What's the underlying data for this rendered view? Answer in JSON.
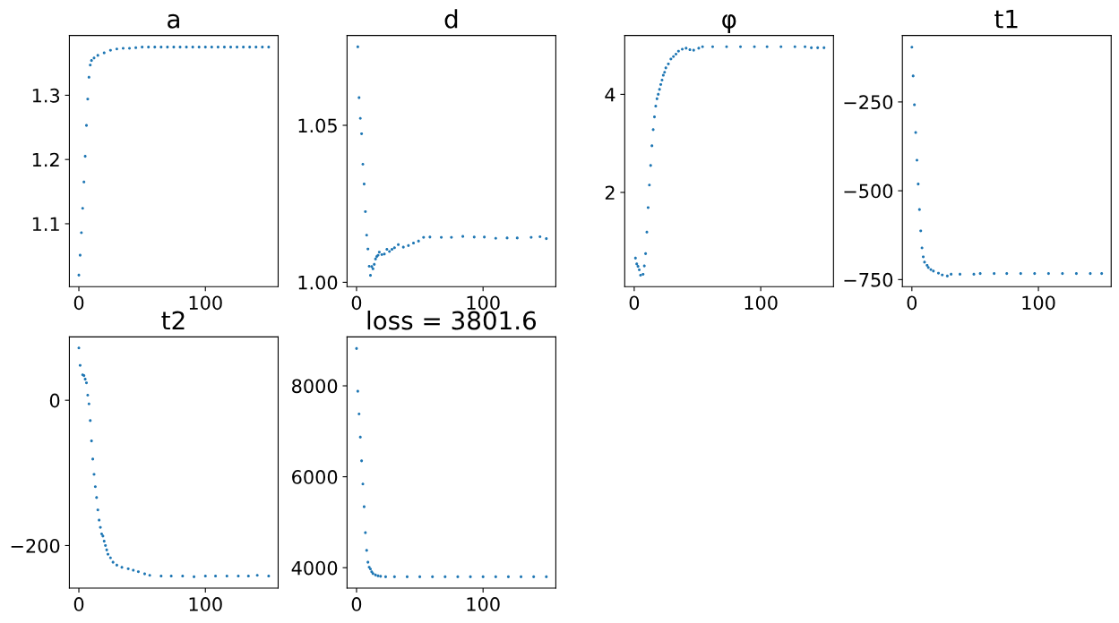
{
  "chart_data": [
    {
      "type": "scatter",
      "title": "a",
      "color": "#1f77b4",
      "marker": "circle",
      "x": [
        0,
        1,
        2,
        3,
        4,
        5,
        6,
        7,
        8,
        9,
        10,
        12,
        15,
        20,
        25,
        30,
        35,
        40,
        45,
        50,
        55,
        60,
        65,
        70,
        75,
        80,
        85,
        90,
        95,
        100,
        105,
        110,
        115,
        120,
        125,
        130,
        135,
        140,
        145,
        150
      ],
      "values": [
        1.02,
        1.051,
        1.086,
        1.124,
        1.165,
        1.205,
        1.253,
        1.294,
        1.328,
        1.347,
        1.354,
        1.358,
        1.362,
        1.366,
        1.37,
        1.372,
        1.373,
        1.373,
        1.374,
        1.375,
        1.375,
        1.375,
        1.375,
        1.375,
        1.375,
        1.375,
        1.375,
        1.375,
        1.375,
        1.375,
        1.375,
        1.375,
        1.375,
        1.375,
        1.375,
        1.375,
        1.375,
        1.375,
        1.375,
        1.375
      ],
      "xlim": [
        -7.5,
        157.5
      ],
      "ylim": [
        1.002,
        1.393
      ],
      "xticks": [
        0,
        100
      ],
      "yticks": [
        1.1,
        1.2,
        1.3
      ]
    },
    {
      "type": "scatter",
      "title": "d",
      "color": "#1f77b4",
      "marker": "circle",
      "x": [
        1,
        2,
        3,
        4,
        5,
        6,
        7,
        8,
        9,
        10,
        11,
        12,
        13,
        14,
        15,
        16,
        17,
        18,
        20,
        22,
        24,
        26,
        28,
        30,
        33,
        37,
        41,
        45,
        49,
        53,
        58,
        67,
        75,
        84,
        93,
        101,
        110,
        119,
        127,
        138,
        145,
        150
      ],
      "values": [
        1.075,
        1.0588,
        1.0522,
        1.0473,
        1.0376,
        1.0313,
        1.0225,
        1.015,
        1.0106,
        1.0051,
        1.0022,
        1.005,
        1.0043,
        1.0057,
        1.0074,
        1.0082,
        1.0086,
        1.0096,
        1.0088,
        1.009,
        1.0105,
        1.0098,
        1.0105,
        1.011,
        1.012,
        1.0112,
        1.0117,
        1.0125,
        1.0131,
        1.0143,
        1.0144,
        1.0143,
        1.0143,
        1.0146,
        1.0144,
        1.0144,
        1.014,
        1.0141,
        1.0141,
        1.0143,
        1.0145,
        1.0139
      ],
      "xlim": [
        -7.5,
        157.5
      ],
      "ylim": [
        0.9986,
        1.0786
      ],
      "xticks": [
        0,
        100
      ],
      "yticks": [
        {
          "value": 1.0,
          "label": "1.00"
        },
        {
          "value": 1.05,
          "label": "1.05"
        }
      ]
    },
    {
      "type": "scatter",
      "title": "φ",
      "color": "#1f77b4",
      "marker": "circle",
      "x": [
        1,
        2,
        3,
        4,
        5,
        7,
        8,
        9,
        10,
        11,
        12,
        13,
        14,
        15,
        16,
        17,
        18,
        19,
        20,
        21,
        22,
        23,
        24,
        25,
        27,
        29,
        31,
        33,
        35,
        38,
        41,
        44,
        47,
        51,
        54,
        62,
        73,
        84,
        95,
        105,
        116,
        127,
        135,
        140,
        145,
        150
      ],
      "values": [
        0.66,
        0.54,
        0.49,
        0.42,
        0.31,
        0.33,
        0.5,
        0.75,
        1.19,
        1.69,
        2.15,
        2.55,
        2.95,
        3.28,
        3.54,
        3.76,
        3.91,
        4.0,
        4.1,
        4.2,
        4.29,
        4.39,
        4.45,
        4.54,
        4.62,
        4.72,
        4.77,
        4.82,
        4.88,
        4.92,
        4.94,
        4.91,
        4.9,
        4.94,
        4.97,
        4.97,
        4.97,
        4.97,
        4.97,
        4.97,
        4.97,
        4.97,
        4.97,
        4.95,
        4.95,
        4.95
      ],
      "xlim": [
        -7.5,
        157.5
      ],
      "ylim": [
        0.077,
        5.2
      ],
      "xticks": [
        0,
        100
      ],
      "yticks": [
        2,
        4
      ]
    },
    {
      "type": "scatter",
      "title": "t1",
      "color": "#1f77b4",
      "marker": "circle",
      "x": [
        0,
        1,
        2,
        3,
        4,
        5,
        6,
        7,
        8,
        9,
        10,
        12,
        13,
        15,
        17,
        21,
        24,
        28,
        31,
        38,
        49,
        54,
        65,
        75,
        86,
        97,
        108,
        119,
        130,
        141,
        150
      ],
      "values": [
        -96,
        -177,
        -258,
        -336,
        -414,
        -481,
        -553,
        -613,
        -661,
        -686,
        -701,
        -710,
        -716,
        -722,
        -726,
        -732,
        -737,
        -740,
        -735,
        -735,
        -735,
        -733,
        -733,
        -733,
        -733,
        -733,
        -733,
        -733,
        -733,
        -733,
        -733
      ],
      "xlim": [
        -7.5,
        157.5
      ],
      "ylim": [
        -770,
        -63
      ],
      "xticks": [
        0,
        100
      ],
      "yticks": [
        {
          "value": -250,
          "label": "−250"
        },
        {
          "value": -500,
          "label": "−500"
        },
        {
          "value": -750,
          "label": "−750"
        }
      ]
    },
    {
      "type": "scatter",
      "title": "t2",
      "color": "#1f77b4",
      "marker": "circle",
      "x": [
        0,
        1,
        3,
        4,
        5,
        6,
        7,
        8,
        9,
        10,
        11,
        12,
        13,
        14,
        15,
        16,
        17,
        18,
        19,
        20,
        21,
        22,
        23,
        25,
        27,
        30,
        34,
        39,
        43,
        47,
        52,
        56,
        65,
        73,
        82,
        91,
        100,
        108,
        117,
        126,
        134,
        141,
        150
      ],
      "values": [
        72,
        48,
        35,
        34,
        29,
        24,
        7,
        -5,
        -28,
        -56,
        -81,
        -102,
        -119,
        -134,
        -151,
        -165,
        -175,
        -184,
        -187,
        -194,
        -200,
        -206,
        -212,
        -217,
        -223,
        -227,
        -230,
        -232,
        -234,
        -236,
        -239,
        -241,
        -242,
        -242,
        -242,
        -243,
        -242,
        -242,
        -242,
        -242,
        -242,
        -241,
        -242
      ],
      "xlim": [
        -7.5,
        157.5
      ],
      "ylim": [
        -258.6,
        87.2
      ],
      "xticks": [
        0,
        100
      ],
      "yticks": [
        0,
        {
          "value": -200,
          "label": "−200"
        }
      ]
    },
    {
      "type": "scatter",
      "title": "loss = 3801.6",
      "color": "#1f77b4",
      "marker": "circle",
      "x": [
        0,
        1,
        2,
        3,
        4,
        5,
        6,
        7,
        8,
        9,
        10,
        11,
        12,
        13,
        15,
        17,
        19,
        23,
        30,
        40,
        50,
        60,
        70,
        80,
        90,
        100,
        110,
        120,
        130,
        140,
        150
      ],
      "values": [
        8820,
        7880,
        7380,
        6870,
        6350,
        5840,
        5340,
        4770,
        4380,
        4120,
        4010,
        3970,
        3910,
        3870,
        3840,
        3820,
        3810,
        3800,
        3800,
        3800,
        3800,
        3800,
        3800,
        3800,
        3800,
        3800,
        3800,
        3800,
        3800,
        3800,
        3800
      ],
      "xlim": [
        -7.5,
        157.5
      ],
      "ylim": [
        3551,
        9075
      ],
      "xticks": [
        0,
        100
      ],
      "yticks": [
        4000,
        6000,
        8000
      ]
    }
  ]
}
